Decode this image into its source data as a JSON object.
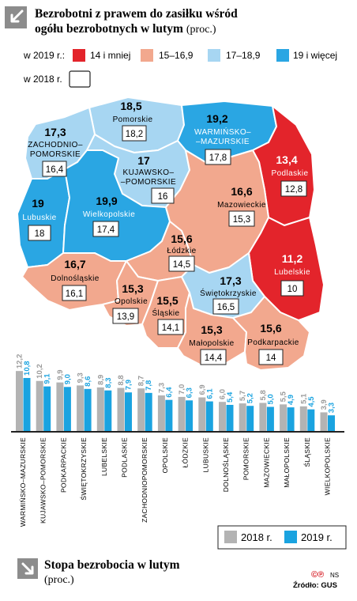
{
  "header": {
    "title_line1": "Bezrobotni z prawem do zasiłku wśród",
    "title_line2": "ogółu bezrobotnych w lutym",
    "unit": "(proc.)"
  },
  "legend": {
    "label_2019": "w 2019 r.:",
    "label_2018": "w 2018 r.",
    "items": [
      {
        "label": "14 i mniej",
        "color": "#e3242b"
      },
      {
        "label": "15–16,9",
        "color": "#f2a88e"
      },
      {
        "label": "17–18,9",
        "color": "#a7d6f2"
      },
      {
        "label": "19 i więcej",
        "color": "#2aa6e3"
      }
    ]
  },
  "map_data": {
    "regions": [
      {
        "id": "pomorskie",
        "name": "Pomorskie",
        "v2019": "18,5",
        "v2018": "18,2",
        "color": "#a7d6f2"
      },
      {
        "id": "warminsko-mazurskie",
        "name": "Warmińsko–mazurskie",
        "v2019": "19,2",
        "v2018": "17,8",
        "color": "#2aa6e3"
      },
      {
        "id": "zachodniopomorskie",
        "name": "Zachodnio–pomorskie",
        "v2019": "17,3",
        "v2018": "16,4",
        "color": "#a7d6f2"
      },
      {
        "id": "kujawsko-pomorskie",
        "name": "Kujawsko–pomorskie",
        "v2019": "17",
        "v2018": "16",
        "color": "#a7d6f2"
      },
      {
        "id": "podlaskie",
        "name": "Podlaskie",
        "v2019": "13,4",
        "v2018": "12,8",
        "color": "#e3242b"
      },
      {
        "id": "lubuskie",
        "name": "Lubuskie",
        "v2019": "19",
        "v2018": "18",
        "color": "#2aa6e3"
      },
      {
        "id": "wielkopolskie",
        "name": "Wielkopolskie",
        "v2019": "19,9",
        "v2018": "17,4",
        "color": "#2aa6e3"
      },
      {
        "id": "mazowieckie",
        "name": "Mazowieckie",
        "v2019": "16,6",
        "v2018": "15,3",
        "color": "#f2a88e"
      },
      {
        "id": "lodzkie",
        "name": "Łódzkie",
        "v2019": "15,6",
        "v2018": "14,5",
        "color": "#f2a88e"
      },
      {
        "id": "lubelskie",
        "name": "Lubelskie",
        "v2019": "11,2",
        "v2018": "10",
        "color": "#e3242b"
      },
      {
        "id": "dolnoslaskie",
        "name": "Dolnośląskie",
        "v2019": "16,7",
        "v2018": "16,1",
        "color": "#f2a88e"
      },
      {
        "id": "opolskie",
        "name": "Opolskie",
        "v2019": "15,3",
        "v2018": "13,9",
        "color": "#f2a88e"
      },
      {
        "id": "slaskie",
        "name": "Śląskie",
        "v2019": "15,5",
        "v2018": "14,1",
        "color": "#f2a88e"
      },
      {
        "id": "swietokrzyskie",
        "name": "Świętokrzyskie",
        "v2019": "17,3",
        "v2018": "16,5",
        "color": "#a7d6f2"
      },
      {
        "id": "malopolskie",
        "name": "Małopolskie",
        "v2019": "15,3",
        "v2018": "14,4",
        "color": "#f2a88e"
      },
      {
        "id": "podkarpackie",
        "name": "Podkarpackie",
        "v2019": "15,6",
        "v2018": "14",
        "color": "#f2a88e"
      }
    ]
  },
  "chart_data": {
    "type": "bar",
    "title": "Stopa bezrobocia w lutym",
    "unit": "(proc.)",
    "categories": [
      "WARMIŃSKO–MAZURSKIE",
      "KUJAWSKO–POMORSKIE",
      "PODKARPACKIE",
      "ŚWIĘTOKRZYSKIE",
      "LUBELSKIE",
      "PODLASKIE",
      "ZACHODNIOPOMORSKIE",
      "OPOLSKIE",
      "ŁÓDZKIE",
      "LUBUSKIE",
      "DOLNOŚLĄSKIE",
      "POMORSKIE",
      "MAZOWIECKIE",
      "MAŁOPOLSKIE",
      "ŚLĄSKIE",
      "WIELKOPOLSKIE"
    ],
    "series": [
      {
        "name": "2018 r.",
        "color": "#b3b3b3",
        "values": [
          12.2,
          10.2,
          9.9,
          9.3,
          8.9,
          8.8,
          8.7,
          7.3,
          7.0,
          6.9,
          6.0,
          5.7,
          5.8,
          5.5,
          5.1,
          3.9
        ],
        "labels": [
          "12,2",
          "10,2",
          "9,9",
          "9,3",
          "8,9",
          "8,8",
          "8,7",
          "7,3",
          "7,0",
          "6,9",
          "6,0",
          "5,7",
          "5,8",
          "5,5",
          "5,1",
          "3,9"
        ]
      },
      {
        "name": "2019 r.",
        "color": "#1aa3e0",
        "values": [
          10.8,
          9.1,
          9.0,
          8.6,
          8.3,
          7.9,
          7.8,
          6.4,
          6.3,
          6.1,
          5.4,
          5.2,
          5.0,
          4.9,
          4.5,
          3.3
        ],
        "labels": [
          "10,8",
          "9,1",
          "9,0",
          "8,6",
          "8,3",
          "7,9",
          "7,8",
          "6,4",
          "6,3",
          "6,1",
          "5,4",
          "5,2",
          "5,0",
          "4,9",
          "4,5",
          "3,3"
        ]
      }
    ]
  },
  "footer": {
    "copyright": "©℗",
    "initials": "NS",
    "source": "Źródło: GUS"
  }
}
